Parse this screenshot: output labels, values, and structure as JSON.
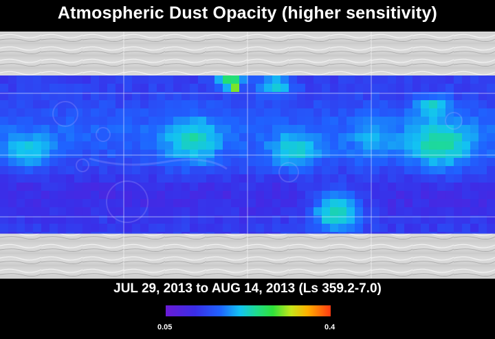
{
  "title": "Atmospheric Dust Opacity (higher sensitivity)",
  "date_range": "JUL 29, 2013 to AUG 14, 2013 (Ls 359.2-7.0)",
  "colorbar": {
    "min_label": "0.05",
    "max_label": "0.4",
    "min_value": 0.05,
    "max_value": 0.4,
    "colors": [
      "#6a1bd6",
      "#3a2ee8",
      "#1f63ff",
      "#13c3f2",
      "#1fdc8f",
      "#2fe23a",
      "#c7e61a",
      "#ffb000",
      "#ff3a12"
    ]
  },
  "map": {
    "type": "heatmap",
    "grid_lines": true,
    "base_terrain": "grayscale-shaded-relief",
    "background_colors": {
      "low": "#6a1bd6",
      "high": "#ff3a12"
    }
  }
}
